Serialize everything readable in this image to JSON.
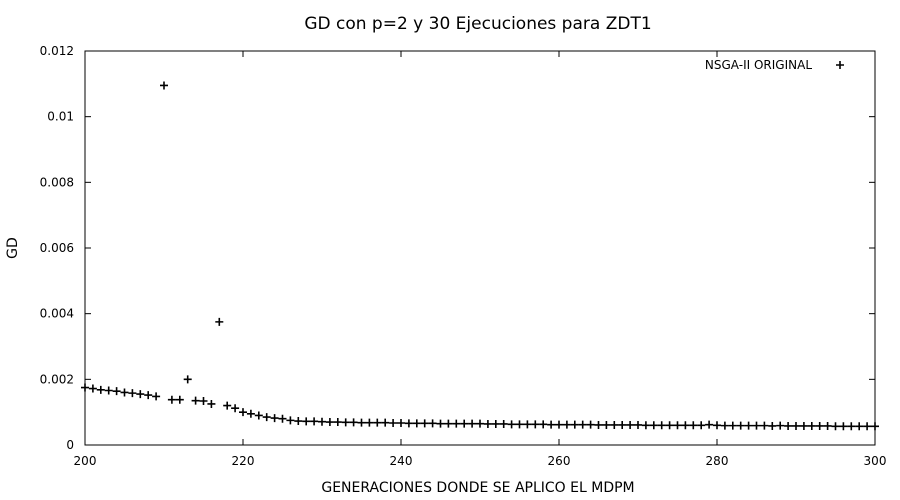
{
  "chart_data": {
    "type": "scatter",
    "title": "GD con p=2 y 30 Ejecuciones para ZDT1",
    "xlabel": "GENERACIONES DONDE SE APLICO EL MDPM",
    "ylabel": "GD",
    "xlim": [
      200,
      300
    ],
    "ylim": [
      0,
      0.012
    ],
    "x_ticks": [
      200,
      220,
      240,
      260,
      280,
      300
    ],
    "x_tick_labels": [
      "200",
      "220",
      "240",
      "260",
      "280",
      "300"
    ],
    "y_ticks": [
      0,
      0.002,
      0.004,
      0.006,
      0.008,
      0.01,
      0.012
    ],
    "y_tick_labels": [
      "0",
      "0.002",
      "0.004",
      "0.006",
      "0.008",
      "0.01",
      "0.012"
    ],
    "grid": false,
    "legend_position": "top-right",
    "marker": "plus",
    "series": [
      {
        "name": "NSGA-II ORIGINAL",
        "color": "#000000",
        "x": [
          200,
          201,
          202,
          203,
          204,
          205,
          206,
          207,
          208,
          209,
          210,
          211,
          212,
          213,
          214,
          215,
          216,
          217,
          218,
          219,
          220,
          221,
          222,
          223,
          224,
          225,
          226,
          227,
          228,
          229,
          230,
          231,
          232,
          233,
          234,
          235,
          236,
          237,
          238,
          239,
          240,
          241,
          242,
          243,
          244,
          245,
          246,
          247,
          248,
          249,
          250,
          251,
          252,
          253,
          254,
          255,
          256,
          257,
          258,
          259,
          260,
          261,
          262,
          263,
          264,
          265,
          266,
          267,
          268,
          269,
          270,
          271,
          272,
          273,
          274,
          275,
          276,
          277,
          278,
          279,
          280,
          281,
          282,
          283,
          284,
          285,
          286,
          287,
          288,
          289,
          290,
          291,
          292,
          293,
          294,
          295,
          296,
          297,
          298,
          299,
          300
        ],
        "y": [
          0.00175,
          0.00172,
          0.00168,
          0.00166,
          0.00164,
          0.0016,
          0.00158,
          0.00155,
          0.00152,
          0.00148,
          0.01095,
          0.00138,
          0.00138,
          0.002,
          0.00135,
          0.00134,
          0.00125,
          0.00375,
          0.0012,
          0.00112,
          0.001,
          0.00095,
          0.0009,
          0.00085,
          0.00082,
          0.0008,
          0.00075,
          0.00073,
          0.00072,
          0.00072,
          0.00071,
          0.0007,
          0.0007,
          0.00069,
          0.00069,
          0.00068,
          0.00068,
          0.00068,
          0.00068,
          0.00067,
          0.00067,
          0.00066,
          0.00066,
          0.00066,
          0.00066,
          0.00065,
          0.00065,
          0.00065,
          0.00065,
          0.00065,
          0.00065,
          0.00064,
          0.00064,
          0.00064,
          0.00063,
          0.00063,
          0.00063,
          0.00063,
          0.00063,
          0.00062,
          0.00062,
          0.00062,
          0.00062,
          0.00062,
          0.00062,
          0.00061,
          0.00061,
          0.00061,
          0.00061,
          0.00061,
          0.00061,
          0.0006,
          0.0006,
          0.0006,
          0.0006,
          0.0006,
          0.0006,
          0.0006,
          0.0006,
          0.00062,
          0.0006,
          0.00059,
          0.00059,
          0.00059,
          0.00059,
          0.00059,
          0.00059,
          0.00058,
          0.00059,
          0.00058,
          0.00058,
          0.00058,
          0.00058,
          0.00058,
          0.00058,
          0.00057,
          0.00057,
          0.00057,
          0.00057,
          0.00057,
          0.00057
        ]
      }
    ]
  }
}
